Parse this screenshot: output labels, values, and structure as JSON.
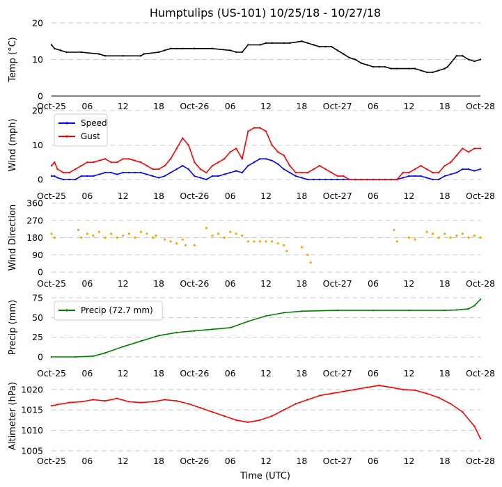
{
  "title": "Humptulips (US-101) 10/25/18 - 10/27/18",
  "x_axis_label": "Time (UTC)",
  "x_tick_labels": [
    "Oct-25",
    "06",
    "12",
    "18",
    "Oct-26",
    "06",
    "12",
    "18",
    "Oct-27",
    "06",
    "12",
    "18",
    "Oct-28"
  ],
  "chart_data": [
    {
      "type": "line",
      "name": "temperature",
      "ylabel": "Temp (°C)",
      "x_unit": "hours since Oct-25 00:00 UTC",
      "xlim": [
        0,
        72
      ],
      "ylim": [
        0,
        20
      ],
      "yticks": [
        0,
        10,
        20
      ],
      "grid": true,
      "series": [
        {
          "name": "Temp",
          "color": "#000000",
          "x": [
            0,
            0.5,
            1.5,
            2.5,
            5,
            8,
            9,
            12,
            15,
            15.5,
            18,
            19,
            20,
            21,
            22,
            24,
            27,
            30,
            31,
            32,
            33,
            35,
            36,
            37,
            39,
            40,
            42,
            43,
            44,
            45,
            46,
            47,
            48,
            49,
            50,
            51,
            52,
            53,
            54,
            55,
            56,
            57,
            58,
            60,
            61,
            62,
            63,
            64,
            65,
            66,
            66.5,
            67,
            68,
            69,
            70,
            71,
            72
          ],
          "values": [
            14,
            13,
            12.5,
            12,
            12,
            11.5,
            11,
            11,
            11,
            11.5,
            12,
            12.5,
            13,
            13,
            13,
            13,
            13,
            12.5,
            12,
            12,
            14,
            14,
            14.5,
            14.5,
            14.5,
            14.5,
            15,
            14.5,
            14,
            13.5,
            13.5,
            13.5,
            12.5,
            11.5,
            10.5,
            10,
            9,
            8.5,
            8,
            8,
            8,
            7.5,
            7.5,
            7.5,
            7.5,
            7,
            6.5,
            6.5,
            7,
            7.5,
            8,
            9,
            11,
            11,
            10,
            9.5,
            10
          ]
        }
      ]
    },
    {
      "type": "line",
      "name": "wind",
      "ylabel": "Wind (mph)",
      "x_unit": "hours since Oct-25 00:00 UTC",
      "xlim": [
        0,
        72
      ],
      "ylim": [
        0,
        20
      ],
      "yticks": [
        0,
        10,
        20
      ],
      "grid": true,
      "legend": "top-left",
      "series": [
        {
          "name": "Speed",
          "color": "#0000ff",
          "x": [
            0,
            0.5,
            1,
            2,
            3,
            4,
            5,
            6,
            7,
            8,
            9,
            10,
            11,
            12,
            13,
            14,
            15,
            16,
            17,
            18,
            19,
            20,
            21,
            22,
            23,
            24,
            25,
            26,
            27,
            28,
            29,
            30,
            31,
            32,
            33,
            34,
            35,
            36,
            37,
            38,
            39,
            40,
            41,
            42,
            43,
            44,
            45,
            46,
            47,
            48,
            49,
            50,
            51,
            52,
            53,
            54,
            55,
            56,
            57,
            58,
            59,
            60,
            61,
            62,
            63,
            64,
            65,
            66,
            67,
            68,
            69,
            70,
            71,
            72
          ],
          "values": [
            1,
            1,
            0.5,
            0,
            0,
            0,
            1,
            1,
            1,
            1.5,
            2,
            2,
            1.5,
            2,
            2,
            2,
            2,
            1.5,
            1,
            0.5,
            1,
            2,
            3,
            4,
            3,
            1,
            0.5,
            0,
            1,
            1,
            1.5,
            2,
            2.5,
            2,
            4,
            5,
            6,
            6,
            5.5,
            4.5,
            3,
            2,
            1,
            0.5,
            0,
            0,
            0,
            0,
            0,
            0,
            0,
            0,
            0,
            0,
            0,
            0,
            0,
            0,
            0,
            0,
            0.5,
            1,
            1,
            1,
            0.5,
            0,
            0,
            1,
            1.5,
            2,
            3,
            3,
            2.5,
            3
          ]
        },
        {
          "name": "Gust",
          "color": "#ff0000",
          "x": [
            0,
            0.5,
            1,
            2,
            3,
            4,
            5,
            6,
            7,
            8,
            9,
            10,
            11,
            12,
            13,
            14,
            15,
            16,
            17,
            18,
            19,
            20,
            21,
            22,
            23,
            24,
            25,
            26,
            27,
            28,
            29,
            30,
            31,
            32,
            33,
            34,
            35,
            36,
            37,
            38,
            39,
            40,
            41,
            42,
            43,
            44,
            45,
            46,
            47,
            48,
            49,
            50,
            51,
            52,
            53,
            54,
            55,
            56,
            57,
            58,
            59,
            60,
            61,
            62,
            63,
            64,
            65,
            66,
            67,
            68,
            69,
            70,
            71,
            72
          ],
          "values": [
            4,
            5,
            3,
            2,
            2,
            3,
            4,
            5,
            5,
            5.5,
            6,
            5,
            5,
            6,
            6,
            5.5,
            5,
            4,
            3,
            3,
            4,
            6,
            9,
            12,
            10,
            5,
            3,
            2,
            4,
            5,
            6,
            8,
            9,
            6,
            14,
            15,
            15,
            14,
            10,
            8,
            7,
            4,
            2,
            2,
            2,
            3,
            4,
            3,
            2,
            1,
            1,
            0,
            0,
            0,
            0,
            0,
            0,
            0,
            0,
            0,
            2,
            2,
            3,
            4,
            3,
            2,
            2,
            4,
            5,
            7,
            9,
            8,
            9,
            9
          ]
        }
      ]
    },
    {
      "type": "scatter",
      "name": "wind_direction",
      "ylabel": "Wind Direction",
      "x_unit": "hours since Oct-25 00:00 UTC",
      "xlim": [
        0,
        72
      ],
      "ylim": [
        0,
        360
      ],
      "yticks": [
        0,
        90,
        180,
        270,
        360
      ],
      "grid": true,
      "series": [
        {
          "name": "Direction",
          "color": "#ffa500",
          "x": [
            0,
            0.5,
            4.5,
            5,
            6,
            7,
            8,
            9,
            10,
            11,
            12,
            13,
            14,
            15,
            16,
            17,
            17.5,
            19,
            20,
            21,
            22,
            22.5,
            24,
            26,
            27,
            28,
            29,
            30,
            31,
            32,
            33,
            34,
            35,
            36,
            37,
            38,
            39,
            39.5,
            42,
            43,
            43.5,
            57.5,
            58,
            60,
            61,
            63,
            64,
            65,
            66,
            67,
            68,
            69,
            70,
            71,
            72
          ],
          "values": [
            200,
            180,
            220,
            180,
            200,
            190,
            210,
            180,
            200,
            180,
            190,
            200,
            180,
            210,
            200,
            180,
            190,
            170,
            160,
            150,
            170,
            140,
            140,
            230,
            190,
            200,
            180,
            210,
            200,
            190,
            160,
            160,
            160,
            160,
            160,
            150,
            140,
            110,
            130,
            90,
            50,
            220,
            160,
            180,
            170,
            210,
            200,
            180,
            200,
            180,
            190,
            200,
            180,
            190,
            180
          ]
        }
      ]
    },
    {
      "type": "line",
      "name": "precipitation",
      "ylabel": "Precip (mm)",
      "x_unit": "hours since Oct-25 00:00 UTC",
      "xlim": [
        0,
        72
      ],
      "ylim": [
        0,
        75
      ],
      "yticks": [
        0,
        25,
        50,
        75
      ],
      "grid": true,
      "legend": "top-left",
      "series": [
        {
          "name": "Precip (72.7 mm)",
          "color": "#008000",
          "x": [
            0,
            4,
            7,
            9,
            12,
            15,
            18,
            21,
            24,
            27,
            30,
            33,
            36,
            39,
            42,
            48,
            54,
            60,
            66,
            68,
            70,
            71,
            72
          ],
          "values": [
            0,
            0,
            1,
            5,
            13,
            20,
            27,
            31,
            33,
            35,
            37,
            45,
            52,
            56,
            58,
            59,
            59,
            59,
            59,
            59.5,
            61,
            65,
            73
          ]
        }
      ]
    },
    {
      "type": "line",
      "name": "altimeter",
      "ylabel": "Altimeter (hPa)",
      "x_unit": "hours since Oct-25 00:00 UTC",
      "xlim": [
        0,
        72
      ],
      "ylim": [
        1005,
        1022
      ],
      "yticks": [
        1005,
        1010,
        1015,
        1020
      ],
      "grid": true,
      "series": [
        {
          "name": "Altimeter",
          "color": "#ff0000",
          "x": [
            0,
            1,
            3,
            5,
            7,
            9,
            11,
            13,
            15,
            17,
            19,
            21,
            23,
            25,
            27,
            29,
            31,
            33,
            35,
            37,
            39,
            41,
            43,
            45,
            47,
            49,
            51,
            53,
            55,
            57,
            59,
            61,
            63,
            65,
            67,
            69,
            71,
            72
          ],
          "values": [
            1016,
            1016.3,
            1016.8,
            1017,
            1017.5,
            1017.2,
            1017.8,
            1017,
            1016.8,
            1017,
            1017.5,
            1017.2,
            1016.5,
            1015.5,
            1014.5,
            1013.5,
            1012.5,
            1012,
            1012.5,
            1013.5,
            1015,
            1016.5,
            1017.5,
            1018.5,
            1019,
            1019.5,
            1020,
            1020.5,
            1021,
            1020.5,
            1020,
            1019.8,
            1019,
            1018,
            1016.5,
            1014.5,
            1011,
            1008
          ]
        }
      ]
    }
  ]
}
